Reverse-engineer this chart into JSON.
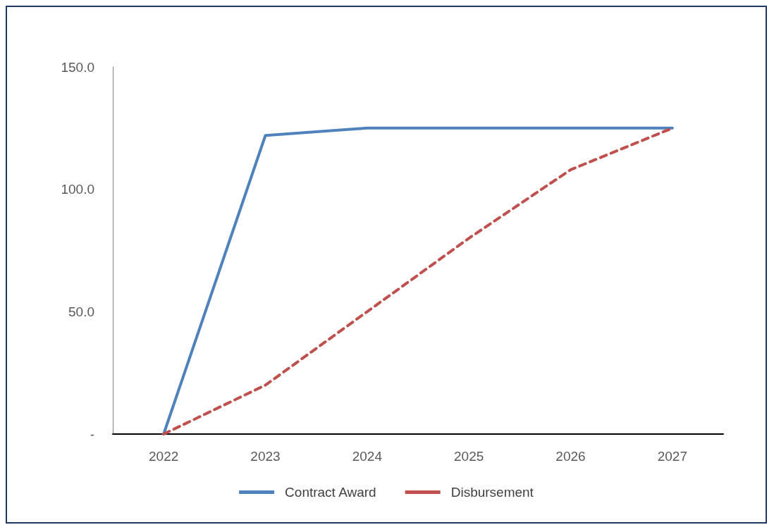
{
  "chart_data": {
    "type": "line",
    "categories": [
      "2022",
      "2023",
      "2024",
      "2025",
      "2026",
      "2027"
    ],
    "series": [
      {
        "name": "Contract Award",
        "color": "#4f81bd",
        "line_style": "solid",
        "values": [
          0,
          122,
          125,
          125,
          125,
          125
        ]
      },
      {
        "name": "Disbursement",
        "color": "#c0504d",
        "line_style": "dashed",
        "values": [
          0,
          20,
          50,
          80,
          108,
          125
        ]
      }
    ],
    "ylim": [
      0,
      150
    ],
    "yticks": [
      {
        "value": 0,
        "label": "-"
      },
      {
        "value": 50,
        "label": "50.0"
      },
      {
        "value": 100,
        "label": "100.0"
      },
      {
        "value": 150,
        "label": "150.0"
      }
    ],
    "grid": false,
    "legend": "bottom",
    "marker": "none"
  }
}
